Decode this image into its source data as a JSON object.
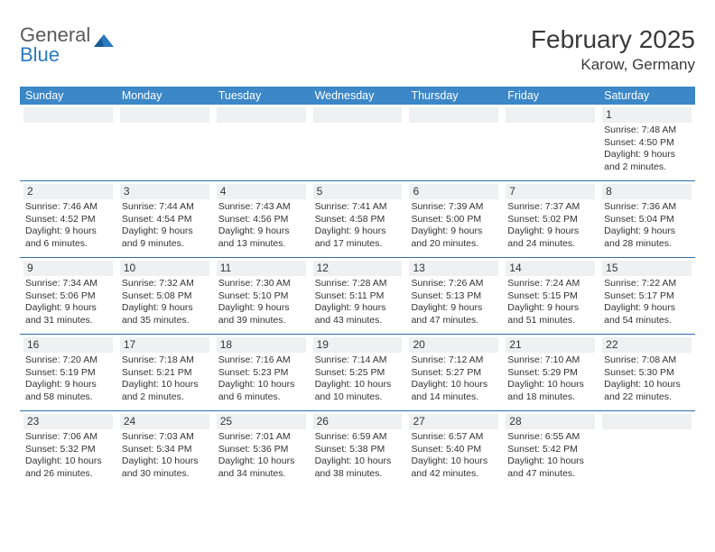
{
  "brand": {
    "text_gray": "General",
    "text_blue": "Blue"
  },
  "title": "February 2025",
  "location": "Karow, Germany",
  "colors": {
    "header_bg": "#3b87c8",
    "header_text": "#ffffff",
    "row_divider": "#2f6fa8",
    "num_strip_bg": "#eef0f1",
    "body_text": "#333333",
    "logo_gray": "#5a5a5a",
    "logo_blue": "#2a7ac0"
  },
  "day_headers": [
    "Sunday",
    "Monday",
    "Tuesday",
    "Wednesday",
    "Thursday",
    "Friday",
    "Saturday"
  ],
  "weeks": [
    [
      {
        "n": "",
        "sunrise": "",
        "sunset": "",
        "daylight": ""
      },
      {
        "n": "",
        "sunrise": "",
        "sunset": "",
        "daylight": ""
      },
      {
        "n": "",
        "sunrise": "",
        "sunset": "",
        "daylight": ""
      },
      {
        "n": "",
        "sunrise": "",
        "sunset": "",
        "daylight": ""
      },
      {
        "n": "",
        "sunrise": "",
        "sunset": "",
        "daylight": ""
      },
      {
        "n": "",
        "sunrise": "",
        "sunset": "",
        "daylight": ""
      },
      {
        "n": "1",
        "sunrise": "Sunrise: 7:48 AM",
        "sunset": "Sunset: 4:50 PM",
        "daylight": "Daylight: 9 hours and 2 minutes."
      }
    ],
    [
      {
        "n": "2",
        "sunrise": "Sunrise: 7:46 AM",
        "sunset": "Sunset: 4:52 PM",
        "daylight": "Daylight: 9 hours and 6 minutes."
      },
      {
        "n": "3",
        "sunrise": "Sunrise: 7:44 AM",
        "sunset": "Sunset: 4:54 PM",
        "daylight": "Daylight: 9 hours and 9 minutes."
      },
      {
        "n": "4",
        "sunrise": "Sunrise: 7:43 AM",
        "sunset": "Sunset: 4:56 PM",
        "daylight": "Daylight: 9 hours and 13 minutes."
      },
      {
        "n": "5",
        "sunrise": "Sunrise: 7:41 AM",
        "sunset": "Sunset: 4:58 PM",
        "daylight": "Daylight: 9 hours and 17 minutes."
      },
      {
        "n": "6",
        "sunrise": "Sunrise: 7:39 AM",
        "sunset": "Sunset: 5:00 PM",
        "daylight": "Daylight: 9 hours and 20 minutes."
      },
      {
        "n": "7",
        "sunrise": "Sunrise: 7:37 AM",
        "sunset": "Sunset: 5:02 PM",
        "daylight": "Daylight: 9 hours and 24 minutes."
      },
      {
        "n": "8",
        "sunrise": "Sunrise: 7:36 AM",
        "sunset": "Sunset: 5:04 PM",
        "daylight": "Daylight: 9 hours and 28 minutes."
      }
    ],
    [
      {
        "n": "9",
        "sunrise": "Sunrise: 7:34 AM",
        "sunset": "Sunset: 5:06 PM",
        "daylight": "Daylight: 9 hours and 31 minutes."
      },
      {
        "n": "10",
        "sunrise": "Sunrise: 7:32 AM",
        "sunset": "Sunset: 5:08 PM",
        "daylight": "Daylight: 9 hours and 35 minutes."
      },
      {
        "n": "11",
        "sunrise": "Sunrise: 7:30 AM",
        "sunset": "Sunset: 5:10 PM",
        "daylight": "Daylight: 9 hours and 39 minutes."
      },
      {
        "n": "12",
        "sunrise": "Sunrise: 7:28 AM",
        "sunset": "Sunset: 5:11 PM",
        "daylight": "Daylight: 9 hours and 43 minutes."
      },
      {
        "n": "13",
        "sunrise": "Sunrise: 7:26 AM",
        "sunset": "Sunset: 5:13 PM",
        "daylight": "Daylight: 9 hours and 47 minutes."
      },
      {
        "n": "14",
        "sunrise": "Sunrise: 7:24 AM",
        "sunset": "Sunset: 5:15 PM",
        "daylight": "Daylight: 9 hours and 51 minutes."
      },
      {
        "n": "15",
        "sunrise": "Sunrise: 7:22 AM",
        "sunset": "Sunset: 5:17 PM",
        "daylight": "Daylight: 9 hours and 54 minutes."
      }
    ],
    [
      {
        "n": "16",
        "sunrise": "Sunrise: 7:20 AM",
        "sunset": "Sunset: 5:19 PM",
        "daylight": "Daylight: 9 hours and 58 minutes."
      },
      {
        "n": "17",
        "sunrise": "Sunrise: 7:18 AM",
        "sunset": "Sunset: 5:21 PM",
        "daylight": "Daylight: 10 hours and 2 minutes."
      },
      {
        "n": "18",
        "sunrise": "Sunrise: 7:16 AM",
        "sunset": "Sunset: 5:23 PM",
        "daylight": "Daylight: 10 hours and 6 minutes."
      },
      {
        "n": "19",
        "sunrise": "Sunrise: 7:14 AM",
        "sunset": "Sunset: 5:25 PM",
        "daylight": "Daylight: 10 hours and 10 minutes."
      },
      {
        "n": "20",
        "sunrise": "Sunrise: 7:12 AM",
        "sunset": "Sunset: 5:27 PM",
        "daylight": "Daylight: 10 hours and 14 minutes."
      },
      {
        "n": "21",
        "sunrise": "Sunrise: 7:10 AM",
        "sunset": "Sunset: 5:29 PM",
        "daylight": "Daylight: 10 hours and 18 minutes."
      },
      {
        "n": "22",
        "sunrise": "Sunrise: 7:08 AM",
        "sunset": "Sunset: 5:30 PM",
        "daylight": "Daylight: 10 hours and 22 minutes."
      }
    ],
    [
      {
        "n": "23",
        "sunrise": "Sunrise: 7:06 AM",
        "sunset": "Sunset: 5:32 PM",
        "daylight": "Daylight: 10 hours and 26 minutes."
      },
      {
        "n": "24",
        "sunrise": "Sunrise: 7:03 AM",
        "sunset": "Sunset: 5:34 PM",
        "daylight": "Daylight: 10 hours and 30 minutes."
      },
      {
        "n": "25",
        "sunrise": "Sunrise: 7:01 AM",
        "sunset": "Sunset: 5:36 PM",
        "daylight": "Daylight: 10 hours and 34 minutes."
      },
      {
        "n": "26",
        "sunrise": "Sunrise: 6:59 AM",
        "sunset": "Sunset: 5:38 PM",
        "daylight": "Daylight: 10 hours and 38 minutes."
      },
      {
        "n": "27",
        "sunrise": "Sunrise: 6:57 AM",
        "sunset": "Sunset: 5:40 PM",
        "daylight": "Daylight: 10 hours and 42 minutes."
      },
      {
        "n": "28",
        "sunrise": "Sunrise: 6:55 AM",
        "sunset": "Sunset: 5:42 PM",
        "daylight": "Daylight: 10 hours and 47 minutes."
      },
      {
        "n": "",
        "sunrise": "",
        "sunset": "",
        "daylight": ""
      }
    ]
  ]
}
